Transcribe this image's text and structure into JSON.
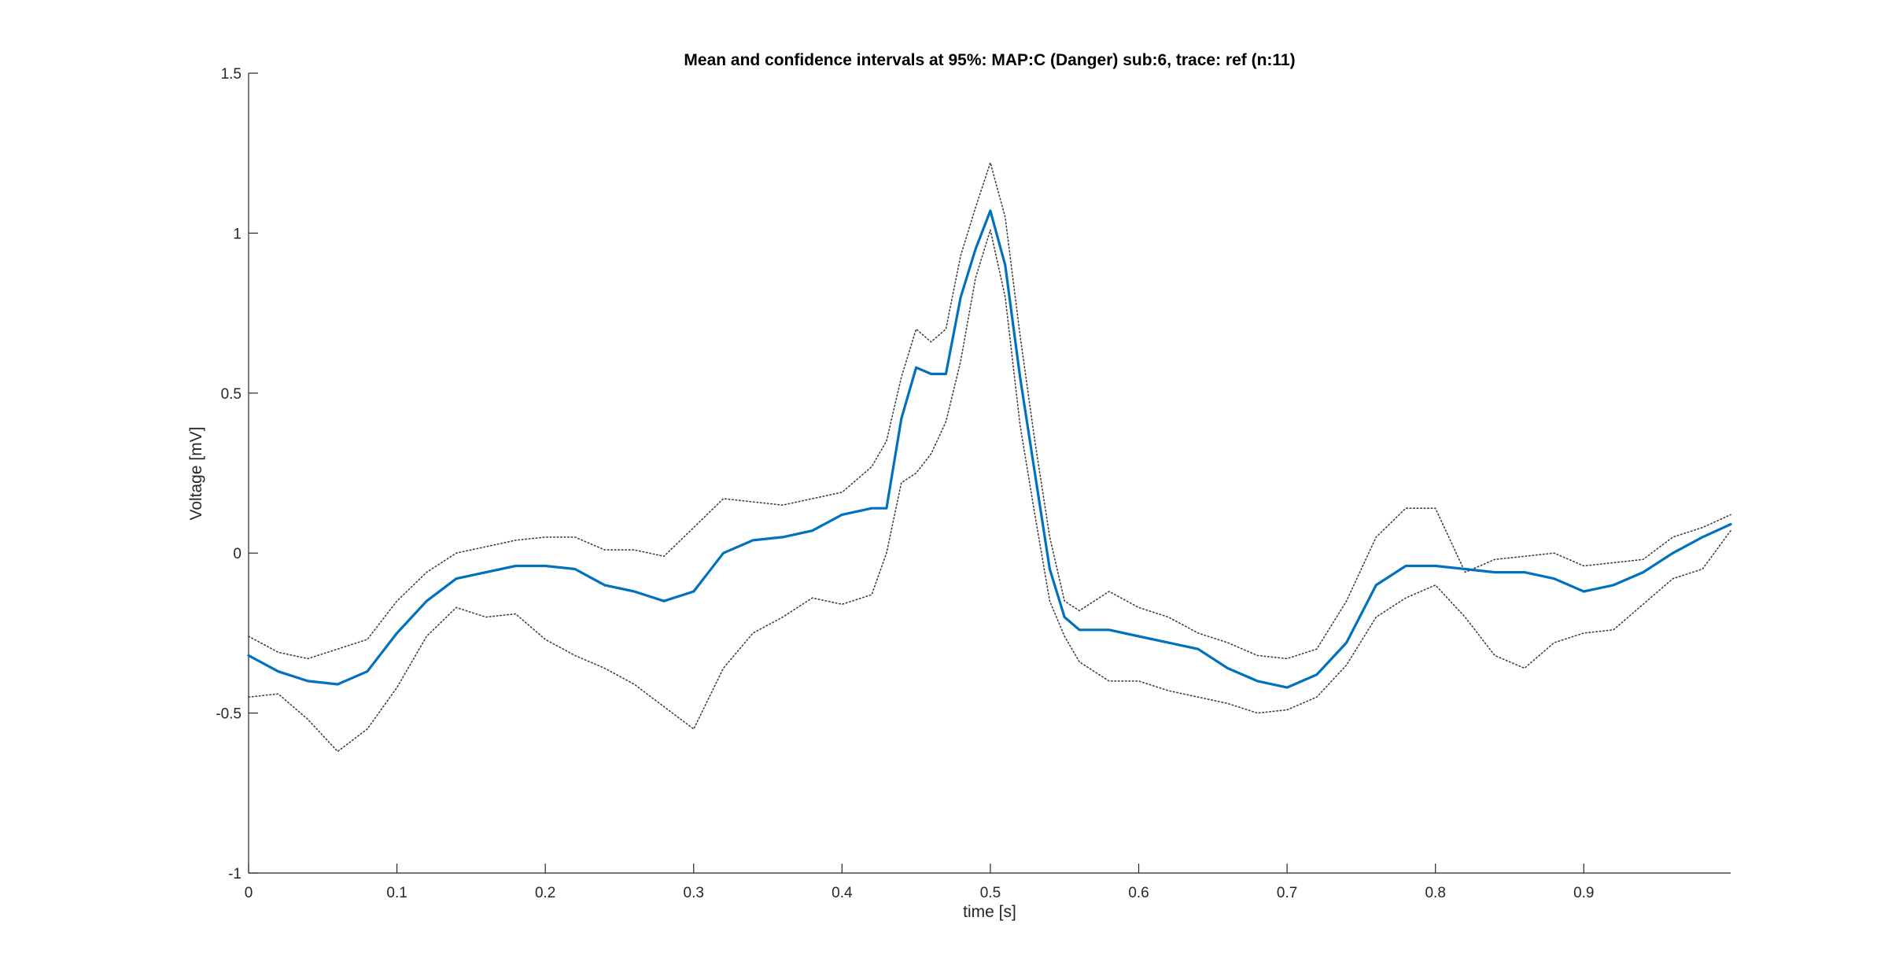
{
  "chart_data": {
    "type": "line",
    "title": "Mean and confidence intervals at 95%: MAP:C (Danger) sub:6, trace: ref (n:11)",
    "xlabel": "time [s]",
    "ylabel": "Voltage [mV]",
    "xlim": [
      0,
      0.999
    ],
    "ylim": [
      -1,
      1.5
    ],
    "xticks": [
      0,
      0.1,
      0.2,
      0.3,
      0.4,
      0.5,
      0.6,
      0.7,
      0.8,
      0.9
    ],
    "xtick_labels": [
      "0",
      "0.1",
      "0.2",
      "0.3",
      "0.4",
      "0.5",
      "0.6",
      "0.7",
      "0.8",
      "0.9"
    ],
    "yticks": [
      -1,
      -0.5,
      0,
      0.5,
      1,
      1.5
    ],
    "ytick_labels": [
      "-1",
      "-0.5",
      "0",
      "0.5",
      "1",
      "1.5"
    ],
    "grid": false,
    "legend": "none",
    "colors": {
      "mean": "#0072BD",
      "ci": "#404040",
      "axes": "#262626"
    },
    "x": [
      0,
      0.02,
      0.04,
      0.06,
      0.08,
      0.1,
      0.12,
      0.14,
      0.16,
      0.18,
      0.2,
      0.22,
      0.24,
      0.26,
      0.28,
      0.3,
      0.32,
      0.34,
      0.36,
      0.38,
      0.4,
      0.42,
      0.43,
      0.44,
      0.45,
      0.46,
      0.47,
      0.48,
      0.49,
      0.5,
      0.51,
      0.52,
      0.53,
      0.54,
      0.55,
      0.56,
      0.58,
      0.6,
      0.62,
      0.64,
      0.66,
      0.68,
      0.7,
      0.72,
      0.74,
      0.76,
      0.78,
      0.8,
      0.82,
      0.84,
      0.86,
      0.88,
      0.9,
      0.92,
      0.94,
      0.96,
      0.98,
      0.999
    ],
    "series": [
      {
        "role": "mean",
        "values": [
          -0.32,
          -0.37,
          -0.4,
          -0.41,
          -0.37,
          -0.25,
          -0.15,
          -0.08,
          -0.06,
          -0.04,
          -0.04,
          -0.05,
          -0.1,
          -0.12,
          -0.15,
          -0.12,
          0.0,
          0.04,
          0.05,
          0.07,
          0.12,
          0.14,
          0.14,
          0.42,
          0.58,
          0.56,
          0.56,
          0.8,
          0.95,
          1.07,
          0.9,
          0.55,
          0.25,
          -0.05,
          -0.2,
          -0.24,
          -0.24,
          -0.26,
          -0.28,
          -0.3,
          -0.36,
          -0.4,
          -0.42,
          -0.38,
          -0.28,
          -0.1,
          -0.04,
          -0.04,
          -0.05,
          -0.06,
          -0.06,
          -0.08,
          -0.12,
          -0.1,
          -0.06,
          0.0,
          0.05,
          0.09
        ]
      },
      {
        "role": "ci-upper",
        "values": [
          -0.26,
          -0.31,
          -0.33,
          -0.3,
          -0.27,
          -0.15,
          -0.06,
          0.0,
          0.02,
          0.04,
          0.05,
          0.05,
          0.01,
          0.01,
          -0.01,
          0.08,
          0.17,
          0.16,
          0.15,
          0.17,
          0.19,
          0.27,
          0.35,
          0.55,
          0.7,
          0.66,
          0.7,
          0.93,
          1.08,
          1.22,
          1.05,
          0.68,
          0.35,
          0.05,
          -0.15,
          -0.18,
          -0.12,
          -0.17,
          -0.2,
          -0.25,
          -0.28,
          -0.32,
          -0.33,
          -0.3,
          -0.15,
          0.05,
          0.14,
          0.14,
          -0.06,
          -0.02,
          -0.01,
          0.0,
          -0.04,
          -0.03,
          -0.02,
          0.05,
          0.08,
          0.12
        ]
      },
      {
        "role": "ci-lower",
        "values": [
          -0.45,
          -0.44,
          -0.52,
          -0.62,
          -0.55,
          -0.42,
          -0.26,
          -0.17,
          -0.2,
          -0.19,
          -0.27,
          -0.32,
          -0.36,
          -0.41,
          -0.48,
          -0.55,
          -0.36,
          -0.25,
          -0.2,
          -0.14,
          -0.16,
          -0.13,
          0.0,
          0.22,
          0.25,
          0.31,
          0.41,
          0.6,
          0.86,
          1.01,
          0.8,
          0.4,
          0.12,
          -0.15,
          -0.26,
          -0.34,
          -0.4,
          -0.4,
          -0.43,
          -0.45,
          -0.47,
          -0.5,
          -0.49,
          -0.45,
          -0.35,
          -0.2,
          -0.14,
          -0.1,
          -0.2,
          -0.32,
          -0.36,
          -0.28,
          -0.25,
          -0.24,
          -0.16,
          -0.08,
          -0.05,
          0.07
        ]
      }
    ]
  }
}
